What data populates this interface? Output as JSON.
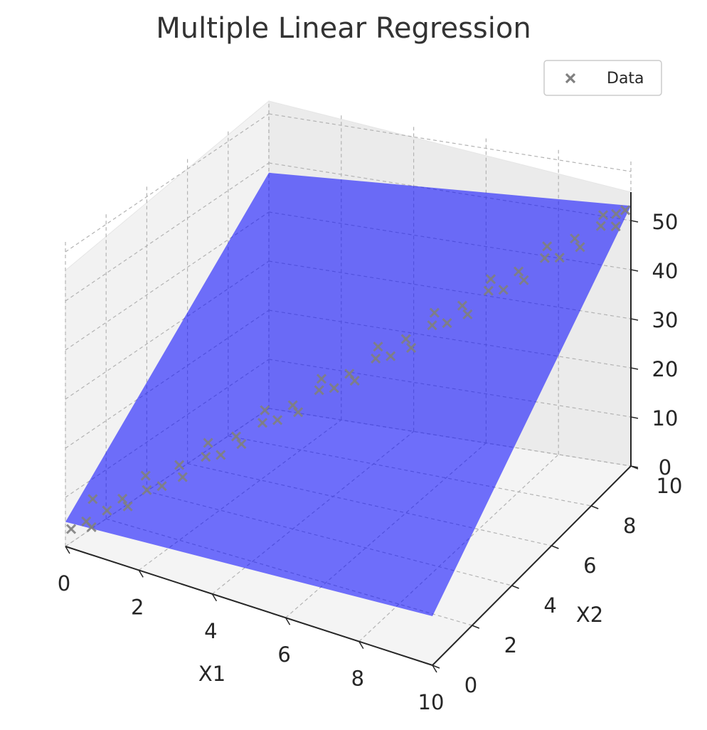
{
  "chart_data": {
    "type": "scatter",
    "title": "Multiple Linear Regression",
    "xlabel": "X1",
    "ylabel": "X2",
    "zlabel": "",
    "xlim": [
      0,
      10
    ],
    "ylim": [
      0,
      10
    ],
    "zlim": [
      0,
      50
    ],
    "x_ticks": [
      "0",
      "2",
      "4",
      "6",
      "8",
      "10"
    ],
    "y_ticks": [
      "0",
      "2",
      "4",
      "6",
      "8",
      "10"
    ],
    "z_ticks": [
      "0",
      "10",
      "20",
      "30",
      "40",
      "50"
    ],
    "grid": true,
    "legend": {
      "position": "top-right",
      "entries": [
        "Data"
      ]
    },
    "surface": {
      "label": "",
      "color": "#0000ff",
      "z_at_corners": {
        "x0_y0": 5,
        "x10_y0": 10,
        "x0_y10": 48,
        "x10_y10": 53
      }
    },
    "series": [
      {
        "name": "Data",
        "marker": "x",
        "color": "#808080",
        "points": [
          [
            0.1,
            0.1,
            3.5
          ],
          [
            0.4,
            0.3,
            5.2
          ],
          [
            0.6,
            0.2,
            4.8
          ],
          [
            0.8,
            0.6,
            7.5
          ],
          [
            0.3,
            0.8,
            8.1
          ],
          [
            1.0,
            1.0,
            9.2
          ],
          [
            1.2,
            0.9,
            8.4
          ],
          [
            1.5,
            1.3,
            11.2
          ],
          [
            1.3,
            1.6,
            12.8
          ],
          [
            1.8,
            1.5,
            12.1
          ],
          [
            2.0,
            2.0,
            15.3
          ],
          [
            2.2,
            1.8,
            13.9
          ],
          [
            2.5,
            2.4,
            16.8
          ],
          [
            2.4,
            2.7,
            18.5
          ],
          [
            2.8,
            2.6,
            17.2
          ],
          [
            3.0,
            3.0,
            20.1
          ],
          [
            3.2,
            2.9,
            19.3
          ],
          [
            3.5,
            3.4,
            22.6
          ],
          [
            3.4,
            3.7,
            24.0
          ],
          [
            3.8,
            3.6,
            23.1
          ],
          [
            4.0,
            4.0,
            25.2
          ],
          [
            4.2,
            3.9,
            24.5
          ],
          [
            4.5,
            4.4,
            27.9
          ],
          [
            4.4,
            4.7,
            29.0
          ],
          [
            4.8,
            4.6,
            28.2
          ],
          [
            5.0,
            5.0,
            30.1
          ],
          [
            5.2,
            4.9,
            29.4
          ],
          [
            5.5,
            5.4,
            32.7
          ],
          [
            5.4,
            5.7,
            33.9
          ],
          [
            5.8,
            5.6,
            33.0
          ],
          [
            6.0,
            6.0,
            35.4
          ],
          [
            6.2,
            5.9,
            34.3
          ],
          [
            6.5,
            6.4,
            37.6
          ],
          [
            6.4,
            6.7,
            38.9
          ],
          [
            6.8,
            6.6,
            37.8
          ],
          [
            7.0,
            7.0,
            40.2
          ],
          [
            7.2,
            6.9,
            39.1
          ],
          [
            7.5,
            7.4,
            42.5
          ],
          [
            7.4,
            7.7,
            43.6
          ],
          [
            7.8,
            7.6,
            42.4
          ],
          [
            8.0,
            8.0,
            44.9
          ],
          [
            8.2,
            7.9,
            43.8
          ],
          [
            8.5,
            8.4,
            46.8
          ],
          [
            8.4,
            8.7,
            47.9
          ],
          [
            8.8,
            8.6,
            46.5
          ],
          [
            9.0,
            9.0,
            49.1
          ],
          [
            9.2,
            8.9,
            48.0
          ],
          [
            9.5,
            9.4,
            50.7
          ],
          [
            9.4,
            9.7,
            51.6
          ],
          [
            9.8,
            9.6,
            50.2
          ],
          [
            9.9,
            9.9,
            52.4
          ],
          [
            9.7,
            9.8,
            51.8
          ]
        ]
      }
    ]
  }
}
